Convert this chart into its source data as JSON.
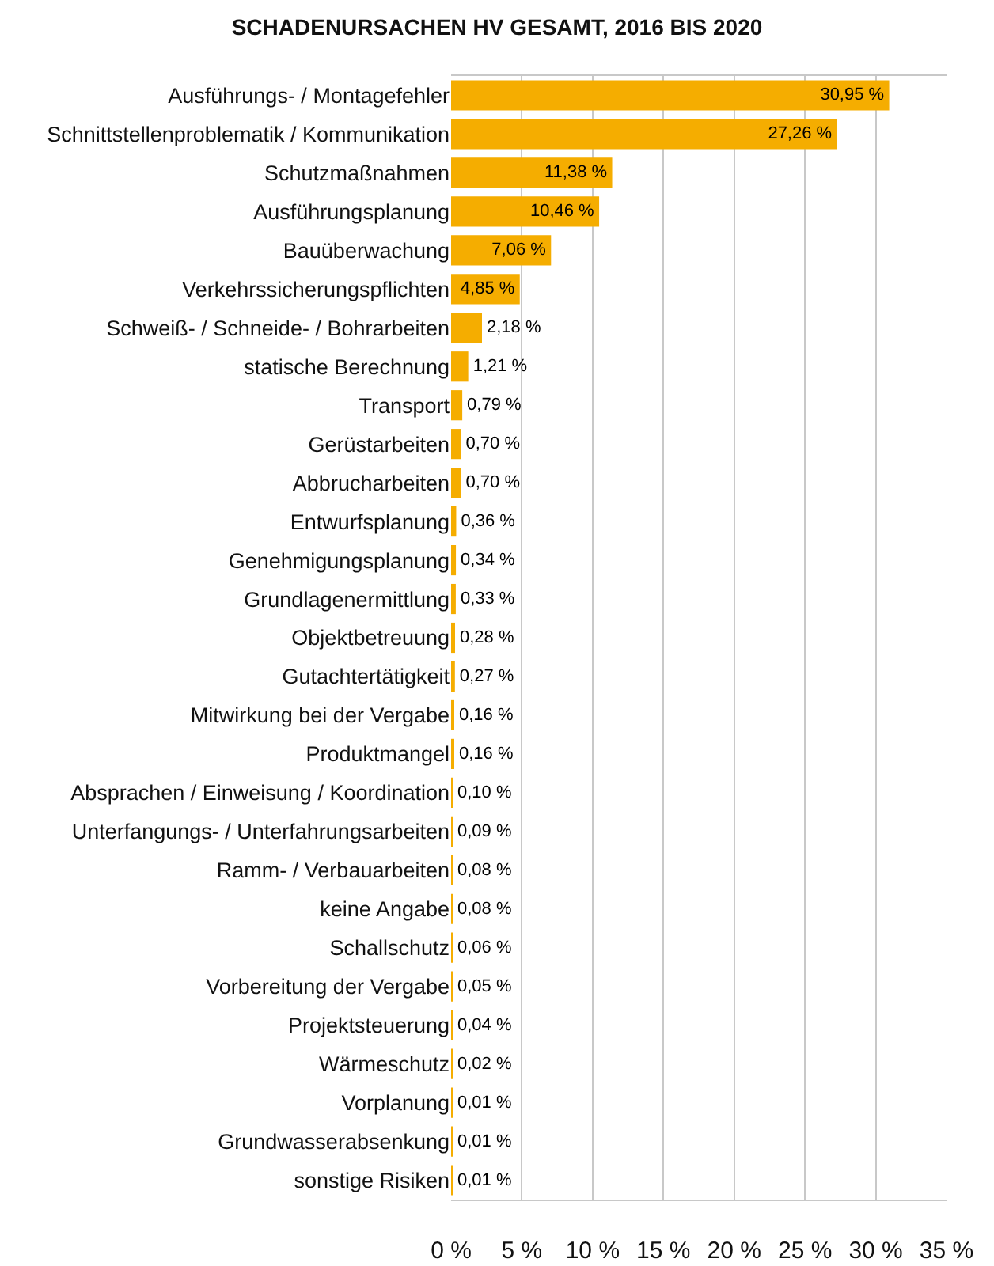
{
  "chart_data": {
    "type": "bar",
    "orientation": "horizontal",
    "title": "SCHADENURSACHEN HV GESAMT, 2016 BIS 2020",
    "categories": [
      "Ausführungs- / Montagefehler",
      "Schnittstellenproblematik / Kommunikation",
      "Schutzmaßnahmen",
      "Ausführungsplanung",
      "Bauüberwachung",
      "Verkehrssicherungspflichten",
      "Schweiß- / Schneide- / Bohrarbeiten",
      "statische Berechnung",
      "Transport",
      "Gerüstarbeiten",
      "Abbrucharbeiten",
      "Entwurfsplanung",
      "Genehmigungsplanung",
      "Grundlagenermittlung",
      "Objektbetreuung",
      "Gutachtertätigkeit",
      "Mitwirkung bei der Vergabe",
      "Produktmangel",
      "Absprachen / Einweisung / Koordination",
      "Unterfangungs- / Unterfahrungsarbeiten",
      "Ramm- / Verbauarbeiten",
      "keine Angabe",
      "Schallschutz",
      "Vorbereitung der Vergabe",
      "Projektsteuerung",
      "Wärmeschutz",
      "Vorplanung",
      "Grundwasserabsenkung",
      "sonstige Risiken"
    ],
    "values": [
      30.95,
      27.26,
      11.38,
      10.46,
      7.06,
      4.85,
      2.18,
      1.21,
      0.79,
      0.7,
      0.7,
      0.36,
      0.34,
      0.33,
      0.28,
      0.27,
      0.16,
      0.16,
      0.1,
      0.09,
      0.08,
      0.08,
      0.06,
      0.05,
      0.04,
      0.02,
      0.01,
      0.01,
      0.01
    ],
    "value_labels": [
      "30,95 %",
      "27,26 %",
      "11,38 %",
      "10,46 %",
      "7,06 %",
      "4,85 %",
      "2,18 %",
      "1,21 %",
      "0,79 %",
      "0,70 %",
      "0,70 %",
      "0,36 %",
      "0,34 %",
      "0,33 %",
      "0,28 %",
      "0,27 %",
      "0,16 %",
      "0,16 %",
      "0,10 %",
      "0,09 %",
      "0,08 %",
      "0,08 %",
      "0,06 %",
      "0,05 %",
      "0,04 %",
      "0,02 %",
      "0,01 %",
      "0,01 %",
      "0,01 %"
    ],
    "color": "#f5ad00",
    "xlim": [
      0,
      35
    ],
    "xticks": [
      {
        "value": 0,
        "label": "0 %"
      },
      {
        "value": 5,
        "label": "5 %"
      },
      {
        "value": 10,
        "label": "10 %"
      },
      {
        "value": 15,
        "label": "15 %"
      },
      {
        "value": 20,
        "label": "20 %"
      },
      {
        "value": 25,
        "label": "25 %"
      },
      {
        "value": 30,
        "label": "30 %"
      },
      {
        "value": 35,
        "label": "35 %"
      }
    ],
    "grid": "x"
  }
}
